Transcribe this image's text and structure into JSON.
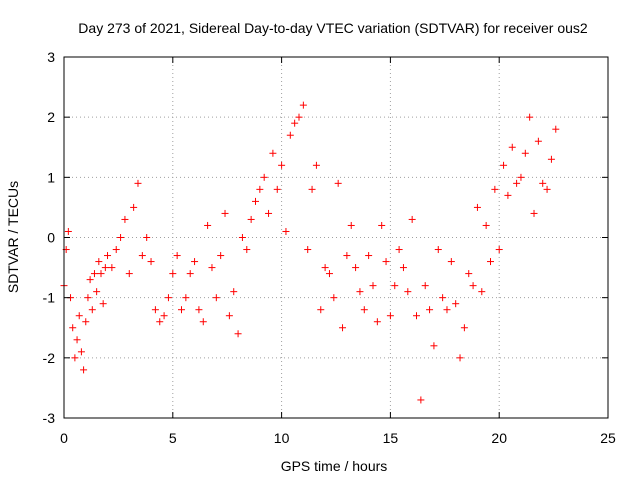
{
  "chart_data": {
    "type": "scatter",
    "title": "Day 273 of 2021, Sidereal Day-to-day VTEC variation (SDTVAR) for receiver ous2",
    "xlabel": "GPS time / hours",
    "ylabel": "SDTVAR / TECUs",
    "xlim": [
      0,
      25
    ],
    "ylim": [
      -3,
      3
    ],
    "xticks": [
      0,
      5,
      10,
      15,
      20,
      25
    ],
    "yticks": [
      -3,
      -2,
      -1,
      0,
      1,
      2,
      3
    ],
    "grid": true,
    "legend": "none",
    "marker": "plus",
    "marker_color": "#ff0000",
    "series": [
      {
        "name": "SDTVAR",
        "color": "#ff0000",
        "x": [
          0.0,
          0.1,
          0.2,
          0.3,
          0.4,
          0.5,
          0.6,
          0.7,
          0.8,
          0.9,
          1.0,
          1.1,
          1.2,
          1.3,
          1.4,
          1.5,
          1.6,
          1.7,
          1.8,
          1.9,
          2.0,
          2.2,
          2.4,
          2.6,
          2.8,
          3.0,
          3.2,
          3.4,
          3.6,
          3.8,
          4.0,
          4.2,
          4.4,
          4.6,
          4.8,
          5.0,
          5.2,
          5.4,
          5.6,
          5.8,
          6.0,
          6.2,
          6.4,
          6.6,
          6.8,
          7.0,
          7.2,
          7.4,
          7.6,
          7.8,
          8.0,
          8.2,
          8.4,
          8.6,
          8.8,
          9.0,
          9.2,
          9.4,
          9.6,
          9.8,
          10.0,
          10.2,
          10.4,
          10.6,
          10.8,
          11.0,
          11.2,
          11.4,
          11.6,
          11.8,
          12.0,
          12.2,
          12.4,
          12.6,
          12.8,
          13.0,
          13.2,
          13.4,
          13.6,
          13.8,
          14.0,
          14.2,
          14.4,
          14.6,
          14.8,
          15.0,
          15.2,
          15.4,
          15.6,
          15.8,
          16.0,
          16.2,
          16.4,
          16.6,
          16.8,
          17.0,
          17.2,
          17.4,
          17.6,
          17.8,
          18.0,
          18.2,
          18.4,
          18.6,
          18.8,
          19.0,
          19.2,
          19.4,
          19.6,
          19.8,
          20.0,
          20.2,
          20.4,
          20.6,
          20.8,
          21.0,
          21.2,
          21.4,
          21.6,
          21.8,
          22.0,
          22.2,
          22.4,
          22.6
        ],
        "y": [
          -0.8,
          -0.2,
          0.1,
          -1.0,
          -1.5,
          -2.0,
          -1.7,
          -1.3,
          -1.9,
          -2.2,
          -1.4,
          -1.0,
          -0.7,
          -1.2,
          -0.6,
          -0.9,
          -0.4,
          -0.6,
          -1.1,
          -0.5,
          -0.3,
          -0.5,
          -0.2,
          0.0,
          0.3,
          -0.6,
          0.5,
          0.9,
          -0.3,
          0.0,
          -0.4,
          -1.2,
          -1.4,
          -1.3,
          -1.0,
          -0.6,
          -0.3,
          -1.2,
          -1.0,
          -0.6,
          -0.4,
          -1.2,
          -1.4,
          0.2,
          -0.5,
          -1.0,
          -0.3,
          0.4,
          -1.3,
          -0.9,
          -1.6,
          0.0,
          -0.2,
          0.3,
          0.6,
          0.8,
          1.0,
          0.4,
          1.4,
          0.8,
          1.2,
          0.1,
          1.7,
          1.9,
          2.0,
          2.2,
          -0.2,
          0.8,
          1.2,
          -1.2,
          -0.5,
          -0.6,
          -1.0,
          0.9,
          -1.5,
          -0.3,
          0.2,
          -0.5,
          -0.9,
          -1.2,
          -0.3,
          -0.8,
          -1.4,
          0.2,
          -0.4,
          -1.3,
          -0.8,
          -0.2,
          -0.5,
          -0.9,
          0.3,
          -1.3,
          -2.7,
          -0.8,
          -1.2,
          -1.8,
          -0.2,
          -1.0,
          -1.2,
          -0.4,
          -1.1,
          -2.0,
          -1.5,
          -0.6,
          -0.8,
          0.5,
          -0.9,
          0.2,
          -0.4,
          0.8,
          -0.2,
          1.2,
          0.7,
          1.5,
          0.9,
          1.0,
          1.4,
          2.0,
          0.4,
          1.6,
          0.9,
          0.8,
          1.3,
          1.8
        ]
      }
    ]
  }
}
